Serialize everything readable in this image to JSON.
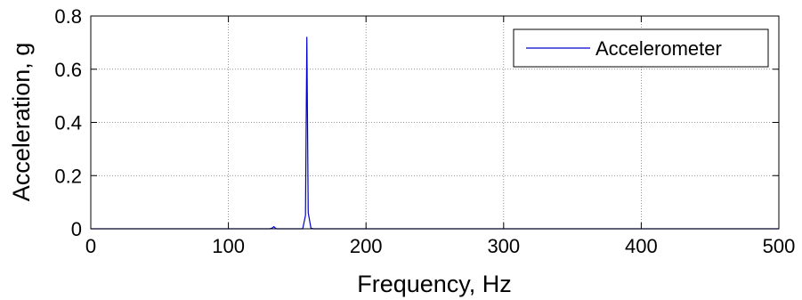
{
  "chart_data": {
    "type": "line",
    "title": "",
    "xlabel": "Frequency, Hz",
    "ylabel": "Acceleration, g",
    "xlim": [
      0,
      500
    ],
    "ylim": [
      0,
      0.8
    ],
    "xticks": [
      0,
      100,
      200,
      300,
      400,
      500
    ],
    "yticks": [
      0,
      0.2,
      0.4,
      0.6,
      0.8
    ],
    "xtick_labels": [
      "0",
      "100",
      "200",
      "300",
      "400",
      "500"
    ],
    "ytick_labels": [
      "0",
      "0.2",
      "0.4",
      "0.6",
      "0.8"
    ],
    "grid": true,
    "legend_position": "top-right",
    "series": [
      {
        "name": "Accelerometer",
        "color": "#0000cc",
        "x": [
          0,
          130,
          132,
          133,
          134,
          135,
          137,
          154,
          156,
          157,
          158,
          160,
          162,
          500
        ],
        "y": [
          0,
          0,
          0.003,
          0.008,
          0.003,
          0,
          0,
          0,
          0.05,
          0.72,
          0.06,
          0.002,
          0,
          0
        ]
      }
    ]
  }
}
